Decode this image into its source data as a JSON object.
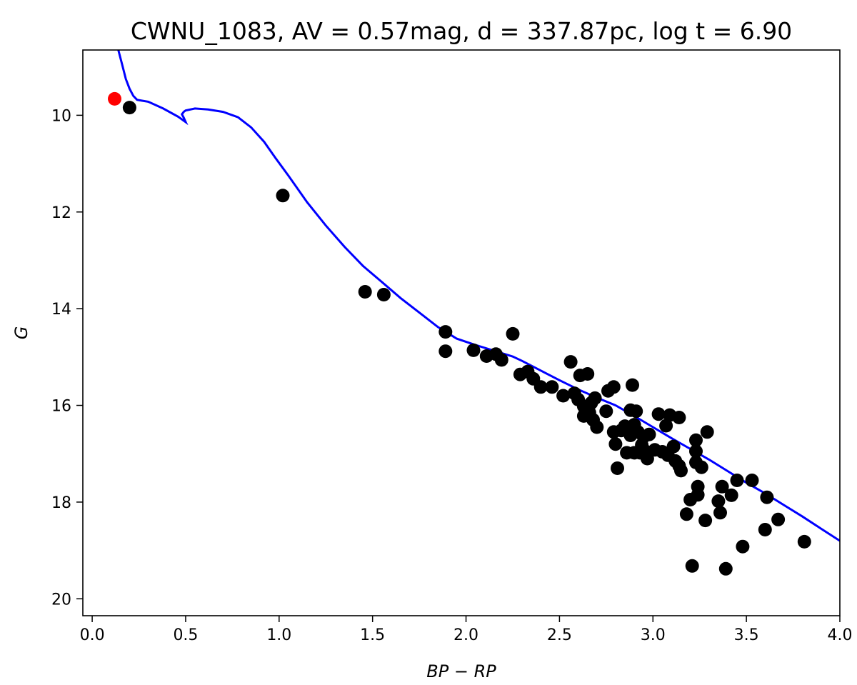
{
  "chart_data": {
    "type": "scatter",
    "title": "CWNU_1083, AV = 0.57mag, d = 337.87pc, log t = 6.90",
    "xlabel": "BP − RP",
    "ylabel": "G",
    "xlim": [
      -0.05,
      4.0
    ],
    "ylim": [
      20.35,
      8.65
    ],
    "y_inverted": true,
    "grid": false,
    "x_ticks": [
      0.0,
      0.5,
      1.0,
      1.5,
      2.0,
      2.5,
      3.0,
      3.5,
      4.0
    ],
    "x_tick_labels": [
      "0.0",
      "0.5",
      "1.0",
      "1.5",
      "2.0",
      "2.5",
      "3.0",
      "3.5",
      "4.0"
    ],
    "y_ticks": [
      10,
      12,
      14,
      16,
      18,
      20
    ],
    "y_tick_labels": [
      "10",
      "12",
      "14",
      "16",
      "18",
      "20"
    ],
    "colors": {
      "isochrone": "#0000ff",
      "members": "#000000",
      "highlight": "#ff0000"
    },
    "series": [
      {
        "kind": "line",
        "color": "#0000ff",
        "points": [
          [
            0.14,
            8.65
          ],
          [
            0.16,
            8.95
          ],
          [
            0.18,
            9.25
          ],
          [
            0.2,
            9.45
          ],
          [
            0.22,
            9.6
          ],
          [
            0.24,
            9.68
          ],
          [
            0.27,
            9.7
          ],
          [
            0.3,
            9.72
          ],
          [
            0.38,
            9.86
          ],
          [
            0.46,
            10.03
          ],
          [
            0.5,
            10.14
          ],
          [
            0.49,
            10.05
          ],
          [
            0.48,
            9.98
          ],
          [
            0.49,
            9.93
          ],
          [
            0.5,
            9.9
          ],
          [
            0.55,
            9.86
          ],
          [
            0.62,
            9.88
          ],
          [
            0.7,
            9.93
          ],
          [
            0.78,
            10.04
          ],
          [
            0.85,
            10.25
          ],
          [
            0.92,
            10.55
          ],
          [
            0.98,
            10.88
          ],
          [
            1.05,
            11.25
          ],
          [
            1.15,
            11.8
          ],
          [
            1.25,
            12.28
          ],
          [
            1.35,
            12.72
          ],
          [
            1.45,
            13.12
          ],
          [
            1.55,
            13.45
          ],
          [
            1.65,
            13.78
          ],
          [
            1.75,
            14.08
          ],
          [
            1.85,
            14.38
          ],
          [
            1.95,
            14.62
          ],
          [
            2.05,
            14.75
          ],
          [
            2.15,
            14.87
          ],
          [
            2.25,
            14.99
          ],
          [
            2.3,
            15.08
          ],
          [
            2.4,
            15.28
          ],
          [
            2.5,
            15.48
          ],
          [
            2.6,
            15.67
          ],
          [
            2.7,
            15.84
          ],
          [
            2.8,
            16.0
          ],
          [
            2.9,
            16.22
          ],
          [
            3.0,
            16.45
          ],
          [
            3.1,
            16.68
          ],
          [
            3.2,
            16.9
          ],
          [
            3.3,
            17.12
          ],
          [
            3.4,
            17.36
          ],
          [
            3.5,
            17.6
          ],
          [
            3.6,
            17.82
          ],
          [
            3.7,
            18.06
          ],
          [
            3.8,
            18.3
          ],
          [
            3.9,
            18.55
          ],
          [
            4.0,
            18.8
          ]
        ]
      },
      {
        "kind": "points",
        "color": "#000000",
        "points": [
          [
            0.2,
            9.84
          ],
          [
            1.02,
            11.66
          ],
          [
            1.46,
            13.65
          ],
          [
            1.56,
            13.71
          ],
          [
            1.89,
            14.48
          ],
          [
            1.89,
            14.88
          ],
          [
            2.04,
            14.86
          ],
          [
            2.11,
            14.98
          ],
          [
            2.16,
            14.94
          ],
          [
            2.19,
            15.06
          ],
          [
            2.25,
            14.52
          ],
          [
            2.29,
            15.36
          ],
          [
            2.33,
            15.3
          ],
          [
            2.36,
            15.45
          ],
          [
            2.4,
            15.62
          ],
          [
            2.46,
            15.62
          ],
          [
            2.52,
            15.8
          ],
          [
            2.56,
            15.1
          ],
          [
            2.58,
            15.75
          ],
          [
            2.6,
            15.88
          ],
          [
            2.61,
            15.38
          ],
          [
            2.63,
            16.02
          ],
          [
            2.63,
            16.22
          ],
          [
            2.65,
            15.35
          ],
          [
            2.66,
            16.15
          ],
          [
            2.67,
            15.95
          ],
          [
            2.68,
            16.3
          ],
          [
            2.69,
            15.85
          ],
          [
            2.7,
            16.45
          ],
          [
            2.75,
            16.12
          ],
          [
            2.76,
            15.7
          ],
          [
            2.79,
            16.55
          ],
          [
            2.79,
            15.62
          ],
          [
            2.8,
            16.8
          ],
          [
            2.81,
            17.3
          ],
          [
            2.83,
            16.52
          ],
          [
            2.85,
            16.43
          ],
          [
            2.86,
            16.98
          ],
          [
            2.88,
            16.1
          ],
          [
            2.88,
            16.62
          ],
          [
            2.89,
            15.58
          ],
          [
            2.9,
            16.98
          ],
          [
            2.9,
            16.4
          ],
          [
            2.91,
            16.12
          ],
          [
            2.92,
            16.55
          ],
          [
            2.93,
            16.98
          ],
          [
            2.94,
            16.82
          ],
          [
            2.95,
            16.65
          ],
          [
            2.96,
            16.95
          ],
          [
            2.97,
            17.1
          ],
          [
            2.98,
            16.6
          ],
          [
            3.01,
            16.92
          ],
          [
            3.03,
            16.18
          ],
          [
            3.05,
            16.96
          ],
          [
            3.07,
            16.42
          ],
          [
            3.08,
            17.03
          ],
          [
            3.09,
            16.2
          ],
          [
            3.11,
            16.85
          ],
          [
            3.12,
            17.15
          ],
          [
            3.14,
            17.25
          ],
          [
            3.14,
            16.25
          ],
          [
            3.15,
            17.35
          ],
          [
            3.18,
            18.25
          ],
          [
            3.2,
            17.95
          ],
          [
            3.21,
            19.32
          ],
          [
            3.23,
            16.72
          ],
          [
            3.23,
            16.95
          ],
          [
            3.23,
            17.18
          ],
          [
            3.24,
            17.68
          ],
          [
            3.24,
            17.85
          ],
          [
            3.26,
            17.28
          ],
          [
            3.28,
            18.38
          ],
          [
            3.29,
            16.55
          ],
          [
            3.35,
            17.98
          ],
          [
            3.36,
            18.22
          ],
          [
            3.37,
            17.68
          ],
          [
            3.39,
            19.38
          ],
          [
            3.42,
            17.86
          ],
          [
            3.45,
            17.55
          ],
          [
            3.48,
            18.92
          ],
          [
            3.53,
            17.55
          ],
          [
            3.6,
            18.57
          ],
          [
            3.61,
            17.9
          ],
          [
            3.67,
            18.36
          ],
          [
            3.81,
            18.82
          ]
        ]
      },
      {
        "kind": "points",
        "color": "#ff0000",
        "points": [
          [
            0.12,
            9.66
          ]
        ]
      }
    ]
  }
}
